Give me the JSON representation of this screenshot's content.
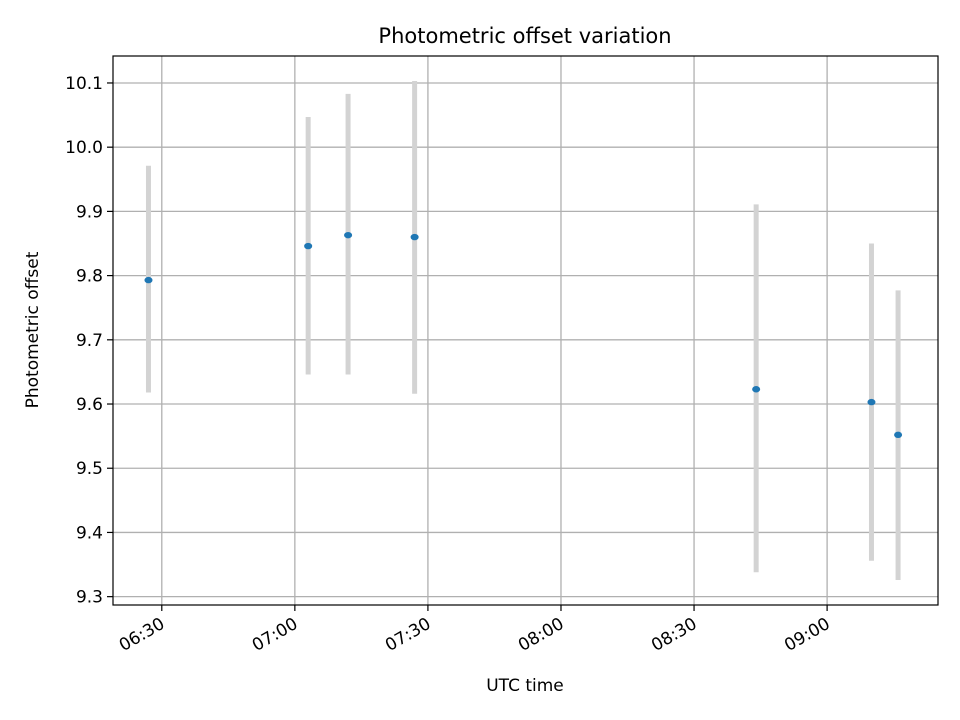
{
  "chart_data": {
    "type": "scatter",
    "title": "Photometric offset variation",
    "xlabel": "UTC time",
    "ylabel": "Photometric offset",
    "xlim": [
      "06:19",
      "09:25"
    ],
    "ylim": [
      9.287,
      10.142
    ],
    "grid": true,
    "xticks": [
      "06:30",
      "07:00",
      "07:30",
      "08:00",
      "08:30",
      "09:00"
    ],
    "yticks": [
      "9.3",
      "9.4",
      "9.5",
      "9.6",
      "9.7",
      "9.8",
      "9.9",
      "10.0",
      "10.1"
    ],
    "series": [
      {
        "x": [
          "06:27",
          "07:03",
          "07:12",
          "07:27",
          "08:44",
          "09:10",
          "09:16"
        ],
        "y": [
          9.793,
          9.846,
          9.863,
          9.86,
          9.623,
          9.603,
          9.552
        ],
        "y_low": [
          9.618,
          9.646,
          9.646,
          9.616,
          9.338,
          9.356,
          9.326
        ],
        "y_high": [
          9.971,
          10.047,
          10.083,
          10.103,
          9.911,
          9.85,
          9.777
        ]
      }
    ],
    "colors": {
      "point": "#1f77b4",
      "errorbar": "#d3d3d3",
      "grid": "#b0b0b0"
    }
  }
}
